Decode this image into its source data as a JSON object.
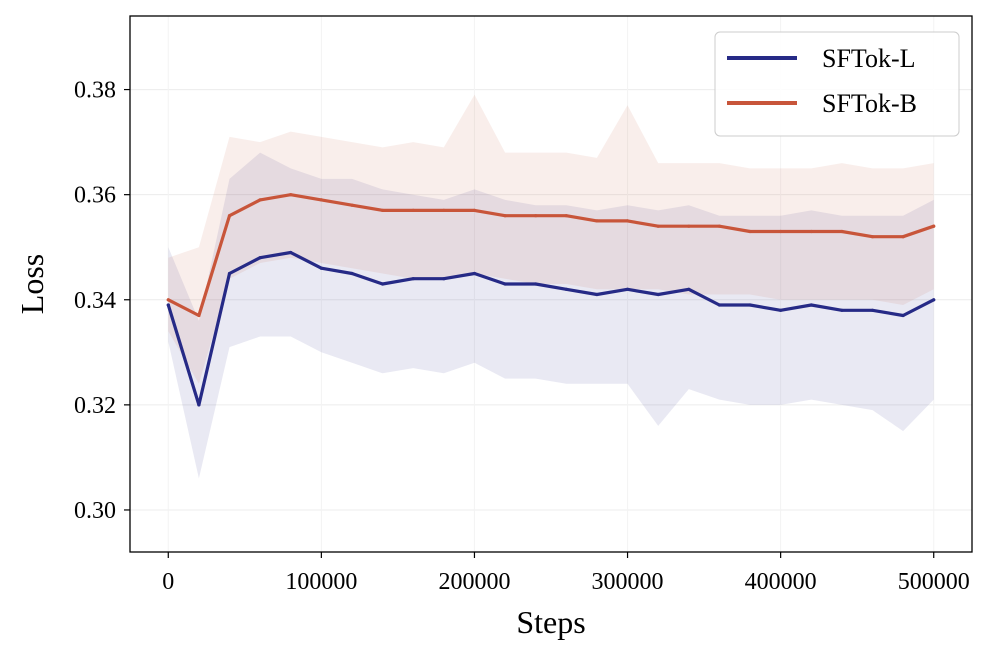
{
  "chart_data": {
    "type": "line",
    "title": "",
    "xlabel": "Steps",
    "ylabel": "Loss",
    "xlim": [
      -25000,
      525000
    ],
    "ylim": [
      0.292,
      0.394
    ],
    "xticks": [
      0,
      100000,
      200000,
      300000,
      400000,
      500000
    ],
    "xtick_labels": [
      "0",
      "100000",
      "200000",
      "300000",
      "400000",
      "500000"
    ],
    "yticks": [
      0.3,
      0.32,
      0.34,
      0.36,
      0.38
    ],
    "ytick_labels": [
      "0.30",
      "0.32",
      "0.34",
      "0.36",
      "0.38"
    ],
    "grid": true,
    "legend_position": "top-right",
    "series": [
      {
        "name": "SFTok-L",
        "color": "#262a86",
        "x": [
          0,
          20000,
          40000,
          60000,
          80000,
          100000,
          120000,
          140000,
          160000,
          180000,
          200000,
          220000,
          240000,
          260000,
          280000,
          300000,
          320000,
          340000,
          360000,
          380000,
          400000,
          420000,
          440000,
          460000,
          480000,
          500000
        ],
        "values": [
          0.339,
          0.32,
          0.345,
          0.348,
          0.349,
          0.346,
          0.345,
          0.343,
          0.344,
          0.344,
          0.345,
          0.343,
          0.343,
          0.342,
          0.341,
          0.342,
          0.341,
          0.342,
          0.339,
          0.339,
          0.338,
          0.339,
          0.338,
          0.338,
          0.337,
          0.34
        ],
        "min_values": [
          0.332,
          0.306,
          0.331,
          0.333,
          0.333,
          0.33,
          0.328,
          0.326,
          0.327,
          0.326,
          0.328,
          0.325,
          0.325,
          0.324,
          0.324,
          0.324,
          0.316,
          0.323,
          0.321,
          0.32,
          0.32,
          0.321,
          0.32,
          0.319,
          0.315,
          0.321
        ],
        "max_values": [
          0.35,
          0.336,
          0.363,
          0.368,
          0.365,
          0.363,
          0.363,
          0.361,
          0.36,
          0.359,
          0.361,
          0.359,
          0.358,
          0.358,
          0.357,
          0.358,
          0.357,
          0.358,
          0.356,
          0.356,
          0.356,
          0.357,
          0.356,
          0.356,
          0.356,
          0.359
        ]
      },
      {
        "name": "SFTok-B",
        "color": "#c8553a",
        "x": [
          0,
          20000,
          40000,
          60000,
          80000,
          100000,
          120000,
          140000,
          160000,
          180000,
          200000,
          220000,
          240000,
          260000,
          280000,
          300000,
          320000,
          340000,
          360000,
          380000,
          400000,
          420000,
          440000,
          460000,
          480000,
          500000
        ],
        "values": [
          0.34,
          0.337,
          0.356,
          0.359,
          0.36,
          0.359,
          0.358,
          0.357,
          0.357,
          0.357,
          0.357,
          0.356,
          0.356,
          0.356,
          0.355,
          0.355,
          0.354,
          0.354,
          0.354,
          0.353,
          0.353,
          0.353,
          0.353,
          0.352,
          0.352,
          0.354
        ],
        "min_values": [
          0.334,
          0.324,
          0.344,
          0.347,
          0.348,
          0.347,
          0.346,
          0.345,
          0.344,
          0.344,
          0.345,
          0.344,
          0.343,
          0.343,
          0.342,
          0.342,
          0.342,
          0.341,
          0.341,
          0.341,
          0.34,
          0.34,
          0.34,
          0.34,
          0.339,
          0.342
        ],
        "max_values": [
          0.348,
          0.35,
          0.371,
          0.37,
          0.372,
          0.371,
          0.37,
          0.369,
          0.37,
          0.369,
          0.379,
          0.368,
          0.368,
          0.368,
          0.367,
          0.377,
          0.366,
          0.366,
          0.366,
          0.365,
          0.365,
          0.365,
          0.366,
          0.365,
          0.365,
          0.366
        ]
      }
    ]
  }
}
